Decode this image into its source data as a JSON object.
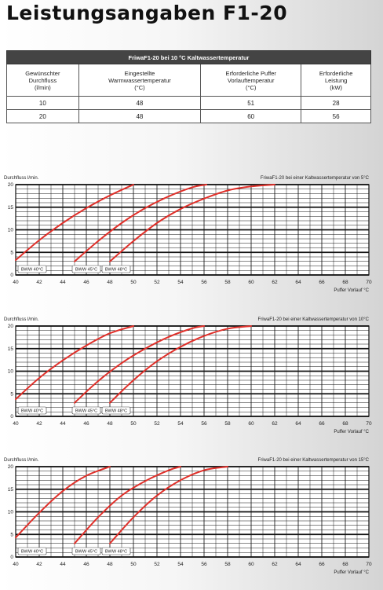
{
  "title": "Leistungsangaben F1-20",
  "table": {
    "caption": "FriwaF1-20 bei 10 °C Kaltwassertemperatur",
    "headers": [
      [
        "Gewünschter",
        "Durchfluss",
        "(l/min)"
      ],
      [
        "Eingestellte",
        "Warmwassertemperatur",
        "(°C)"
      ],
      [
        "Erforderliche Puffer",
        "Vorlauftemperatur",
        "(°C)"
      ],
      [
        "Erforderliche",
        "Leistung",
        "(kW)"
      ]
    ],
    "rows": [
      [
        "10",
        "48",
        "51",
        "28"
      ],
      [
        "20",
        "48",
        "60",
        "56"
      ]
    ]
  },
  "chart_data": [
    {
      "type": "line",
      "title": "FriwaF1-20 bei einer Kaltwassertemperatur von 5°C",
      "ylabel": "Durchfluss l/min.",
      "xlabel": "Puffer Vorlauf °C",
      "xlim": [
        40,
        70
      ],
      "ylim": [
        0,
        20
      ],
      "xticks": [
        40,
        42,
        44,
        46,
        48,
        50,
        52,
        54,
        56,
        58,
        60,
        62,
        64,
        66,
        68,
        70
      ],
      "yticks": [
        0,
        5,
        10,
        15,
        20
      ],
      "series": [
        {
          "name": "BWW 40°C",
          "x": [
            40,
            42,
            44,
            46,
            48,
            50
          ],
          "y": [
            3.3,
            7.7,
            11.5,
            14.8,
            17.6,
            20
          ]
        },
        {
          "name": "BWW 45°C",
          "x": [
            45,
            47,
            49,
            51,
            53,
            55,
            56.2
          ],
          "y": [
            3,
            7.5,
            11.5,
            14.8,
            17.4,
            19.4,
            20
          ]
        },
        {
          "name": "BWW 48°C",
          "x": [
            48,
            50,
            52,
            54,
            56,
            58,
            60,
            62
          ],
          "y": [
            3,
            7.5,
            11.5,
            14.6,
            16.9,
            18.7,
            19.6,
            20
          ]
        }
      ],
      "color": "#e0302a"
    },
    {
      "type": "line",
      "title": "FriwaF1-20 bei einer Kaltwassertemperatur von 10°C",
      "ylabel": "Durchfluss l/min.",
      "xlabel": "Puffer Vorlauf °C",
      "xlim": [
        40,
        70
      ],
      "ylim": [
        0,
        20
      ],
      "xticks": [
        40,
        42,
        44,
        46,
        48,
        50,
        52,
        54,
        56,
        58,
        60,
        62,
        64,
        66,
        68,
        70
      ],
      "yticks": [
        0,
        5,
        10,
        15,
        20
      ],
      "series": [
        {
          "name": "BWW 40°C",
          "x": [
            40,
            42,
            44,
            46,
            48,
            50
          ],
          "y": [
            3.8,
            8.5,
            12.4,
            15.7,
            18.4,
            20
          ]
        },
        {
          "name": "BWW 45°C",
          "x": [
            45,
            47,
            49,
            51,
            53,
            55,
            56
          ],
          "y": [
            3,
            7.8,
            11.8,
            15,
            17.6,
            19.5,
            20
          ]
        },
        {
          "name": "BWW 48°C",
          "x": [
            48,
            50,
            52,
            54,
            56,
            58,
            60
          ],
          "y": [
            3,
            8,
            12.2,
            15.4,
            17.8,
            19.4,
            20
          ]
        }
      ],
      "color": "#e0302a"
    },
    {
      "type": "line",
      "title": "FriwaF1-20 bei einer Kaltwassertemperatur von 15°C",
      "ylabel": "Durchfluss l/min.",
      "xlabel": "Puffer Vorlauf °C",
      "xlim": [
        40,
        70
      ],
      "ylim": [
        0,
        20
      ],
      "xticks": [
        40,
        42,
        44,
        46,
        48,
        50,
        52,
        54,
        56,
        58,
        60,
        62,
        64,
        66,
        68,
        70
      ],
      "yticks": [
        0,
        5,
        10,
        15,
        20
      ],
      "series": [
        {
          "name": "BWW 40°C",
          "x": [
            40,
            42,
            44,
            46,
            48
          ],
          "y": [
            4.3,
            9.8,
            14.6,
            18,
            20
          ]
        },
        {
          "name": "BWW 45°C",
          "x": [
            45,
            47,
            49,
            51,
            53,
            54
          ],
          "y": [
            3,
            8.8,
            13.6,
            16.8,
            19.2,
            20
          ]
        },
        {
          "name": "BWW 48°C",
          "x": [
            48,
            50,
            52,
            54,
            56,
            58
          ],
          "y": [
            3,
            8.8,
            13.6,
            17,
            19.2,
            20
          ]
        }
      ],
      "color": "#e0302a"
    }
  ]
}
